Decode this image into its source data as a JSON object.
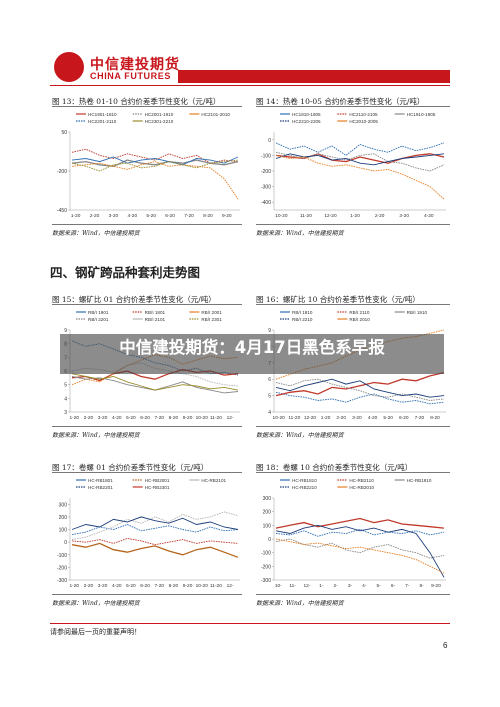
{
  "header": {
    "company_cn": "中信建投期货",
    "company_en": "CHINA FUTURES"
  },
  "colors": {
    "brand_red": "#c8161d",
    "dark_red": "#c0392b",
    "orange": "#e67e22",
    "gray": "#888888",
    "light_gray": "#b5b5b5",
    "blue": "#2e6fb3",
    "dark_blue": "#1c3d7a",
    "teal": "#5aa7c4",
    "olive": "#9a8b2a",
    "brown": "#b5651d",
    "pink": "#d99080"
  },
  "section_title": "四、钢矿跨品种套利走势图",
  "banner": "中信建投期货：4月17日黑色系早报",
  "footer": {
    "disclaimer": "请参阅最后一页的重要声明！",
    "page_number": "6"
  },
  "figures": [
    {
      "title": "图 13：热卷 01-10 合约价差季节性变化（元/吨）",
      "source": "数据来源：Wind，中信建投期货"
    },
    {
      "title": "图 14：热卷 10-05 合约价差季节性变化（元/吨）",
      "source": "数据来源：Wind，中信建投期货"
    },
    {
      "title": "图 15：螺矿比 01 合约价差季节性变化（元/吨）",
      "source": "数据来源：Wind，中信建投期货"
    },
    {
      "title": "图 16：螺矿比 10 合约价差季节性变化（元/吨）",
      "source": "数据来源：Wind，中信建投期货"
    },
    {
      "title": "图 17：卷螺 01 合约价差季节性变化（元/吨）",
      "source": "数据来源：Wind，中信建投期货"
    },
    {
      "title": "图 18：卷螺 10 合约价差季节性变化（元/吨）",
      "source": "数据来源：Wind，中信建投期货"
    }
  ],
  "chart_data": [
    {
      "type": "line",
      "ylim": [
        -450,
        50
      ],
      "yticks": [
        -450,
        -200,
        50
      ],
      "xticks": [
        "1-20",
        "2-20",
        "3-20",
        "4-20",
        "5-20",
        "6-20",
        "7-20",
        "8-20",
        "9-20"
      ],
      "series": [
        {
          "name": "HC1901-1810",
          "color": "#c0392b",
          "values": [
            -80,
            -60,
            -100,
            -120,
            -90,
            -110,
            -130,
            -90,
            -120,
            -100,
            -150,
            -130,
            -140
          ]
        },
        {
          "name": "HC2001-1910",
          "color": "#888888",
          "values": [
            -150,
            -140,
            -160,
            -170,
            -130,
            -150,
            -160,
            -140,
            -150,
            -130,
            -150,
            -160,
            -140
          ]
        },
        {
          "name": "HC2101-2010",
          "color": "#e67e22",
          "values": [
            -170,
            -160,
            -150,
            -170,
            -190,
            -160,
            -140,
            -170,
            -160,
            -170,
            -180,
            -250,
            -380
          ]
        },
        {
          "name": "HC2201-2110",
          "color": "#2e6fb3",
          "values": [
            -130,
            -120,
            -140,
            -110,
            -150,
            -130,
            -120,
            -140,
            -160,
            -120,
            -130,
            -150,
            -110
          ]
        },
        {
          "name": "HC2301-2210",
          "color": "#9a8b2a",
          "values": [
            -150,
            -170,
            -200,
            -160,
            -150,
            -180,
            -170,
            -140,
            -160,
            -180,
            -150,
            -140,
            -130
          ]
        }
      ]
    },
    {
      "type": "line",
      "ylim": [
        -450,
        50
      ],
      "yticks": [
        -400,
        -300,
        -200,
        -100,
        0
      ],
      "xticks": [
        "10-20",
        "11-20",
        "12-20",
        "1-20",
        "2-20",
        "3-20",
        "4-20"
      ],
      "series": [
        {
          "name": "HC1810-1805",
          "color": "#2e6fb3",
          "values": [
            -20,
            -60,
            -40,
            -80,
            -40,
            -100,
            -30,
            -60,
            -80,
            -40,
            -70,
            -50,
            -20
          ]
        },
        {
          "name": "HC2110-2105",
          "color": "#c0392b",
          "values": [
            -100,
            -110,
            -120,
            -90,
            -130,
            -140,
            -110,
            -130,
            -150,
            -120,
            -100,
            -90,
            -110
          ]
        },
        {
          "name": "HC1910-1905",
          "color": "#888888",
          "values": [
            -80,
            -100,
            -120,
            -90,
            -110,
            -130,
            -100,
            -90,
            -140,
            -150,
            -180,
            -200,
            -160
          ]
        },
        {
          "name": "HC2210-2205",
          "color": "#1c3d7a",
          "values": [
            -120,
            -90,
            -110,
            -100,
            -130,
            -120,
            -150,
            -160,
            -140,
            -120,
            -110,
            -100,
            -90
          ]
        },
        {
          "name": "HC2010-2005",
          "color": "#e67e22",
          "values": [
            -100,
            -120,
            -110,
            -150,
            -170,
            -160,
            -180,
            -200,
            -190,
            -220,
            -260,
            -300,
            -380
          ]
        }
      ]
    },
    {
      "type": "line",
      "ylim": [
        3,
        9
      ],
      "yticks": [
        3,
        4,
        5,
        6,
        7,
        8,
        9
      ],
      "xticks": [
        "1-20",
        "2-20",
        "3-20",
        "4-20",
        "5-20",
        "6-20",
        "7-20",
        "8-20",
        "9-20",
        "10-20",
        "11-20",
        "12-"
      ],
      "series": [
        {
          "name": "RB/I 1901",
          "color": "#2e6fb3",
          "values": [
            8.2,
            7.8,
            8.0,
            7.6,
            7.2,
            7.0,
            6.6,
            6.4,
            6.0,
            6.2,
            5.8,
            5.9,
            5.7
          ]
        },
        {
          "name": "RB/I 1801",
          "color": "#c0392b",
          "values": [
            5.5,
            5.6,
            5.3,
            5.8,
            6.0,
            5.6,
            5.4,
            5.8,
            6.1,
            5.9,
            6.0,
            5.7,
            5.8
          ]
        },
        {
          "name": "RB/I 2001",
          "color": "#e67e22",
          "values": [
            5.0,
            5.4,
            5.2,
            5.8,
            6.4,
            6.8,
            7.2,
            7.0,
            6.5,
            6.8,
            7.1,
            6.9,
            7.0
          ]
        },
        {
          "name": "RB/I 2201",
          "color": "#888888",
          "values": [
            5.6,
            5.4,
            5.5,
            5.3,
            5.0,
            4.8,
            4.6,
            4.9,
            5.2,
            4.8,
            4.6,
            4.4,
            4.5
          ]
        },
        {
          "name": "RB/I 2101",
          "color": "#b5b5b5",
          "values": [
            6.0,
            6.2,
            6.1,
            5.9,
            6.4,
            6.6,
            6.2,
            6.0,
            5.8,
            5.6,
            5.2,
            5.0,
            4.9
          ]
        },
        {
          "name": "RB/I 2301",
          "color": "#9a8b2a",
          "values": [
            5.8,
            5.6,
            5.4,
            5.6,
            5.2,
            4.9,
            4.6,
            4.8,
            5.0,
            4.9,
            4.7,
            4.8,
            4.6
          ]
        }
      ]
    },
    {
      "type": "line",
      "ylim": [
        4,
        9
      ],
      "yticks": [
        4,
        5,
        6,
        7,
        8,
        9
      ],
      "xticks": [
        "10-20",
        "11-20",
        "12-20",
        "1-20",
        "2-20",
        "3-20",
        "4-20",
        "5-20",
        "6-20",
        "7-20",
        "8-20"
      ],
      "series": [
        {
          "name": "RB/I 1810",
          "color": "#2e6fb3",
          "values": [
            5.2,
            5.0,
            4.9,
            4.7,
            4.8,
            4.6,
            4.9,
            5.1,
            4.8,
            4.6,
            4.7,
            4.5,
            4.6
          ]
        },
        {
          "name": "RB/I 2110",
          "color": "#c0392b",
          "values": [
            5.0,
            5.2,
            5.3,
            5.1,
            5.5,
            5.4,
            5.6,
            5.8,
            5.7,
            6.0,
            5.9,
            6.2,
            6.4
          ]
        },
        {
          "name": "RB/I 1910",
          "color": "#888888",
          "values": [
            5.8,
            5.6,
            5.9,
            6.0,
            5.7,
            5.5,
            5.3,
            5.0,
            4.9,
            5.1,
            4.9,
            4.7,
            4.8
          ]
        },
        {
          "name": "RB/I 2210",
          "color": "#1c3d7a",
          "values": [
            5.5,
            5.3,
            5.6,
            5.8,
            6.0,
            5.7,
            5.9,
            5.4,
            5.2,
            5.0,
            5.1,
            4.9,
            5.0
          ]
        },
        {
          "name": "RB/I 2010",
          "color": "#e67e22",
          "values": [
            6.0,
            6.3,
            6.6,
            6.8,
            7.0,
            7.4,
            7.8,
            8.0,
            8.3,
            8.5,
            8.6,
            8.8,
            9.0
          ]
        }
      ]
    },
    {
      "type": "line",
      "ylim": [
        -300,
        350
      ],
      "yticks": [
        -300,
        -200,
        -100,
        0,
        100,
        200,
        300
      ],
      "xticks": [
        "1-20",
        "2-20",
        "3-20",
        "4-20",
        "5-20",
        "6-20",
        "7-20",
        "8-20",
        "9-20",
        "10-20",
        "11-20",
        "12-"
      ],
      "series": [
        {
          "name": "HC-RB1801",
          "color": "#2e6fb3",
          "values": [
            60,
            80,
            120,
            100,
            140,
            90,
            110,
            130,
            100,
            80,
            120,
            90,
            100
          ]
        },
        {
          "name": "HC-RB2001",
          "color": "#b5651d",
          "values": [
            -20,
            -40,
            -10,
            -60,
            -80,
            -50,
            -30,
            -70,
            -100,
            -60,
            -40,
            -80,
            -120
          ]
        },
        {
          "name": "HC-RB2101",
          "color": "#b5b5b5",
          "values": [
            20,
            40,
            80,
            120,
            180,
            150,
            200,
            160,
            220,
            180,
            200,
            240,
            210
          ]
        },
        {
          "name": "HC-RB2201",
          "color": "#1c3d7a",
          "values": [
            100,
            140,
            120,
            180,
            160,
            200,
            170,
            150,
            190,
            140,
            160,
            120,
            100
          ]
        },
        {
          "name": "HC-RB2301",
          "color": "#c0392b",
          "values": [
            10,
            0,
            20,
            -10,
            30,
            10,
            -20,
            0,
            20,
            -10,
            10,
            0,
            -10
          ]
        }
      ]
    },
    {
      "type": "line",
      "ylim": [
        -300,
        300
      ],
      "yticks": [
        -300,
        -200,
        -100,
        0,
        100,
        200,
        300
      ],
      "xticks": [
        "10-",
        "11-",
        "12-",
        "1-",
        "2-",
        "3-",
        "4-",
        "5-",
        "6-",
        "7-",
        "8-",
        "9-20"
      ],
      "series": [
        {
          "name": "HC-RB1810",
          "color": "#2e6fb3",
          "values": [
            40,
            30,
            60,
            20,
            50,
            40,
            70,
            30,
            50,
            40,
            60,
            30,
            50
          ]
        },
        {
          "name": "HC-RB2110",
          "color": "#c0392b",
          "values": [
            80,
            100,
            120,
            90,
            110,
            130,
            150,
            120,
            140,
            110,
            100,
            90,
            80
          ]
        },
        {
          "name": "HC-RB1910",
          "color": "#888888",
          "values": [
            -20,
            0,
            -40,
            -60,
            -30,
            -80,
            -100,
            -60,
            -40,
            -80,
            -100,
            -140,
            -120
          ]
        },
        {
          "name": "HC-RB2210",
          "color": "#1c3d7a",
          "values": [
            60,
            40,
            80,
            100,
            70,
            90,
            60,
            80,
            50,
            70,
            40,
            -100,
            -280
          ]
        },
        {
          "name": "HC-RB2010",
          "color": "#e67e22",
          "values": [
            0,
            -20,
            -40,
            -30,
            -50,
            -70,
            -60,
            -80,
            -100,
            -120,
            -150,
            -200,
            -250
          ]
        }
      ]
    }
  ]
}
